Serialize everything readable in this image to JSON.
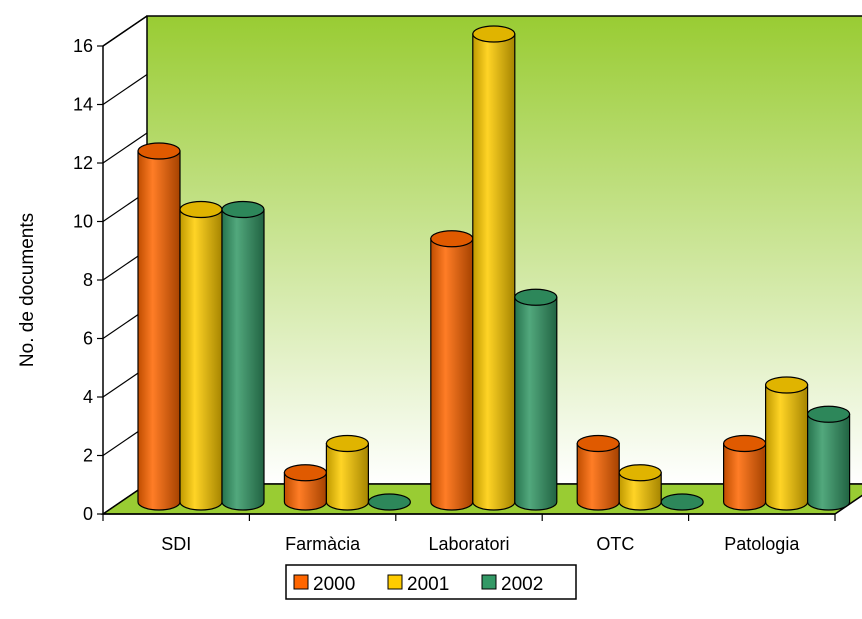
{
  "chart_data": {
    "type": "bar",
    "title": "",
    "xlabel": "",
    "ylabel": "No. de documents",
    "ylim": [
      0,
      16
    ],
    "yticks": [
      "0",
      "2",
      "4",
      "6",
      "8",
      "10",
      "12",
      "14",
      "16"
    ],
    "grid": false,
    "legend_position": "bottom",
    "categories": [
      "SDI",
      "Farmàcia",
      "Laboratori",
      "OTC",
      "Patologia"
    ],
    "series": [
      {
        "name": "2000",
        "color": "#ff6600",
        "values": [
          12,
          1,
          9,
          2,
          2
        ]
      },
      {
        "name": "2001",
        "color": "#ffcc00",
        "values": [
          10,
          2,
          16,
          1,
          4
        ]
      },
      {
        "name": "2002",
        "color": "#339966",
        "values": [
          10,
          0,
          7,
          0,
          3
        ]
      }
    ],
    "style": {
      "wall_top_color": "#99cc33",
      "wall_bottom_color": "#ffffff",
      "floor_color": "#99cc33",
      "bar_shape": "cylinder"
    }
  }
}
